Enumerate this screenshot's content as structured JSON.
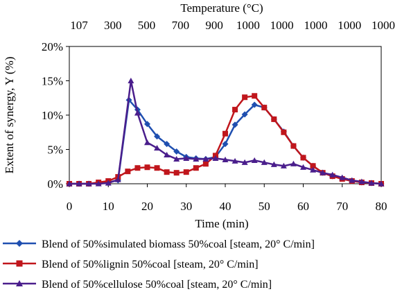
{
  "chart_data": {
    "type": "line",
    "title": "",
    "xlabel": "Time (min)",
    "ylabel": "Extent of synergy, Y (%)",
    "top_axis_label": "Temperature (°C)",
    "top_ticks": [
      "107",
      "300",
      "500",
      "700",
      "900",
      "1000",
      "1000",
      "1000",
      "1000",
      "1000"
    ],
    "xlim": [
      0,
      80
    ],
    "ylim": [
      0,
      20
    ],
    "x_ticks": [
      "0",
      "10",
      "20",
      "30",
      "40",
      "50",
      "60",
      "70",
      "80"
    ],
    "y_ticks": [
      "0%",
      "5%",
      "10%",
      "15%",
      "20%"
    ],
    "grid": false,
    "legend_position": "bottom",
    "series": [
      {
        "name": "Blend of 50%simulated biomass 50%coal [steam, 20°  C/min]",
        "color": "#1f4fb0",
        "marker": "diamond",
        "x": [
          0,
          2.5,
          5,
          7.5,
          10,
          12.5,
          15.3,
          17.5,
          20,
          22.5,
          25,
          27.5,
          30,
          32.5,
          35,
          37.5,
          40,
          42.5,
          45,
          47.5,
          50,
          52.5,
          55,
          57.5,
          60,
          62.5,
          65,
          67.5,
          70,
          72.5,
          75,
          77.5,
          80
        ],
        "y": [
          0,
          0,
          0,
          0.1,
          0.2,
          0.5,
          12.2,
          10.8,
          8.7,
          6.9,
          5.8,
          4.7,
          3.9,
          3.7,
          3.6,
          3.9,
          5.8,
          8.6,
          10.1,
          11.5,
          11.1,
          9.4,
          7.6,
          5.5,
          3.8,
          2.6,
          1.6,
          1.1,
          0.8,
          0.4,
          0.2,
          0.1,
          0
        ]
      },
      {
        "name": "Blend of 50%lignin 50%coal [steam, 20°  C/min]",
        "color": "#c0161c",
        "marker": "square",
        "x": [
          0,
          2.5,
          5,
          7.5,
          10,
          12.5,
          15,
          17.5,
          20,
          22.5,
          25,
          27.5,
          30,
          32.5,
          35,
          37.5,
          40,
          42.5,
          45,
          47.5,
          50,
          52.5,
          55,
          57.5,
          60,
          62.5,
          65,
          67.5,
          70,
          72.5,
          75,
          77.5,
          80
        ],
        "y": [
          0,
          0,
          0,
          0.2,
          0.4,
          1.0,
          1.8,
          2.3,
          2.4,
          2.3,
          1.7,
          1.6,
          1.7,
          2.3,
          2.9,
          4.1,
          7.3,
          10.8,
          12.6,
          12.8,
          11.1,
          9.4,
          7.5,
          5.5,
          3.8,
          2.6,
          1.6,
          1.1,
          0.7,
          0.4,
          0.2,
          0.1,
          0
        ]
      },
      {
        "name": "Blend of 50%cellulose 50%coal [steam, 20°  C/min]",
        "color": "#4a1e8c",
        "marker": "triangle",
        "x": [
          0,
          2.5,
          5,
          7.5,
          10,
          12.5,
          15.8,
          17.5,
          20,
          22.5,
          25,
          27.5,
          30,
          32.5,
          35,
          37.5,
          40,
          42.5,
          45,
          47.5,
          50,
          52.5,
          55,
          57.5,
          60,
          62.5,
          65,
          67.5,
          70,
          72.5,
          75,
          77.5,
          80
        ],
        "y": [
          0,
          0,
          0,
          0,
          0.1,
          0.6,
          15.0,
          10.3,
          6.0,
          5.2,
          4.2,
          3.6,
          3.7,
          3.6,
          3.6,
          3.7,
          3.5,
          3.3,
          3.1,
          3.4,
          3.1,
          2.8,
          2.6,
          2.9,
          2.4,
          2.0,
          1.6,
          1.3,
          0.9,
          0.5,
          0.3,
          0.1,
          0
        ]
      }
    ]
  }
}
